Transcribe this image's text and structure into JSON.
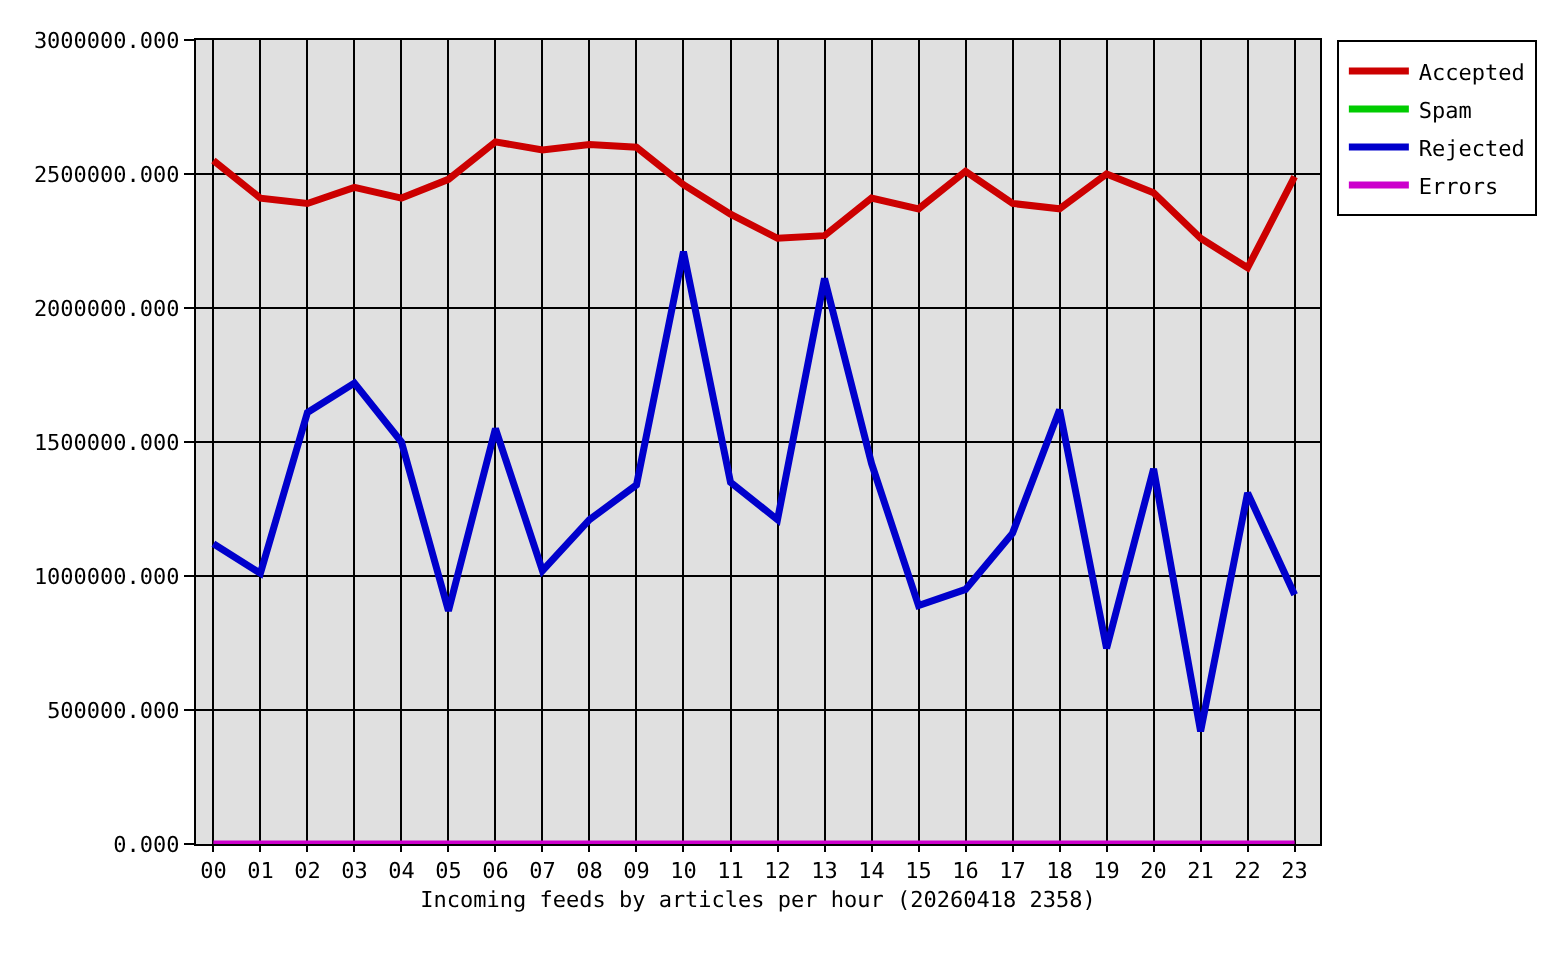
{
  "chart_data": {
    "type": "line",
    "xlabel": "Incoming feeds by articles per hour (20260418 2358)",
    "categories": [
      "00",
      "01",
      "02",
      "03",
      "04",
      "05",
      "06",
      "07",
      "08",
      "09",
      "10",
      "11",
      "12",
      "13",
      "14",
      "15",
      "16",
      "17",
      "18",
      "19",
      "20",
      "21",
      "22",
      "23"
    ],
    "series": [
      {
        "name": "Accepted",
        "color": "#cc0000",
        "values": [
          2550000,
          2410000,
          2390000,
          2450000,
          2410000,
          2480000,
          2620000,
          2590000,
          2610000,
          2600000,
          2460000,
          2350000,
          2260000,
          2270000,
          2410000,
          2370000,
          2510000,
          2390000,
          2370000,
          2500000,
          2430000,
          2260000,
          2150000,
          2490000
        ]
      },
      {
        "name": "Spam",
        "color": "#00cc00",
        "values": [
          null,
          null,
          null,
          null,
          null,
          null,
          null,
          null,
          null,
          null,
          null,
          null,
          null,
          null,
          null,
          null,
          null,
          null,
          null,
          null,
          null,
          null,
          null,
          null
        ]
      },
      {
        "name": "Rejected",
        "color": "#0000cc",
        "values": [
          1120000,
          1010000,
          1610000,
          1720000,
          1500000,
          870000,
          1550000,
          1020000,
          1210000,
          1340000,
          2210000,
          1350000,
          1210000,
          2110000,
          1420000,
          890000,
          950000,
          1160000,
          1620000,
          730000,
          1400000,
          420000,
          1310000,
          930000
        ]
      },
      {
        "name": "Errors",
        "color": "#cc00cc",
        "values": [
          0,
          0,
          0,
          0,
          0,
          0,
          0,
          0,
          0,
          0,
          0,
          0,
          0,
          0,
          0,
          0,
          0,
          0,
          0,
          0,
          0,
          0,
          0,
          0
        ]
      }
    ],
    "ylim": [
      0,
      3000000
    ],
    "yticks": [
      {
        "value": 0,
        "label": "0.000"
      },
      {
        "value": 500000,
        "label": "500000.000"
      },
      {
        "value": 1000000,
        "label": "1000000.000"
      },
      {
        "value": 1500000,
        "label": "1500000.000"
      },
      {
        "value": 2000000,
        "label": "2000000.000"
      },
      {
        "value": 2500000,
        "label": "2500000.000"
      },
      {
        "value": 3000000,
        "label": "3000000.000"
      }
    ],
    "grid": true,
    "legend": "top right",
    "marker": "none",
    "line_style": "solid"
  }
}
